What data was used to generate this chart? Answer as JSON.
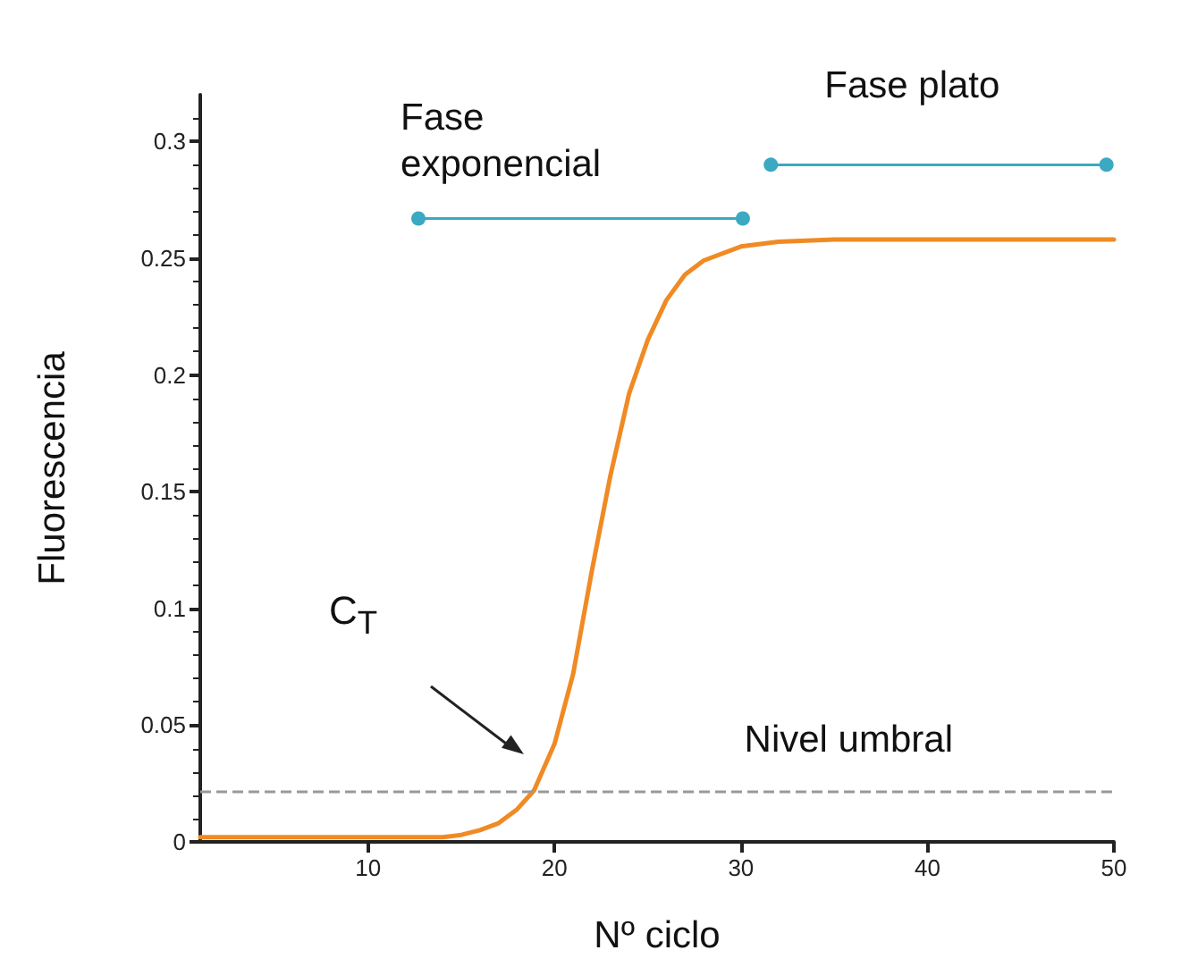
{
  "chart_data": {
    "type": "line",
    "xlabel": "Nº ciclo",
    "ylabel": "Fluorescencia",
    "xlim": [
      1,
      50
    ],
    "xticks": [
      10,
      20,
      30,
      40,
      50
    ],
    "ylim": [
      0,
      0.32
    ],
    "yticks": [
      0,
      0.05,
      0.1,
      0.15,
      0.2,
      0.25,
      0.3
    ],
    "grid": false,
    "legend": false,
    "marker": "none",
    "series": [
      {
        "color": "#f08a24",
        "x": [
          1,
          5,
          10,
          13,
          14,
          15,
          16,
          17,
          18,
          18.9,
          20,
          21,
          22,
          23,
          24,
          25,
          26,
          27,
          28,
          30,
          32,
          35,
          40,
          45,
          50
        ],
        "values": [
          0.002,
          0.002,
          0.002,
          0.002,
          0.002,
          0.003,
          0.005,
          0.008,
          0.014,
          0.022,
          0.042,
          0.072,
          0.116,
          0.157,
          0.192,
          0.215,
          0.232,
          0.243,
          0.249,
          0.255,
          0.257,
          0.258,
          0.258,
          0.258,
          0.258
        ]
      },
      {
        "name": "Fase exponencial",
        "color": "#3aa9c1",
        "marker": "circle",
        "x": [
          12.7,
          30.1
        ],
        "values": [
          0.267,
          0.267
        ]
      },
      {
        "name": "Fase plato",
        "color": "#3aa9c1",
        "marker": "circle",
        "x": [
          31.6,
          49.6
        ],
        "values": [
          0.29,
          0.29
        ]
      }
    ],
    "ref_lines": [
      {
        "axis": "y",
        "value": 0.022,
        "label": "Nivel umbral",
        "color": "#999999",
        "line_style": "dashed"
      }
    ],
    "annotations": [
      "C$_{T}$"
    ]
  }
}
